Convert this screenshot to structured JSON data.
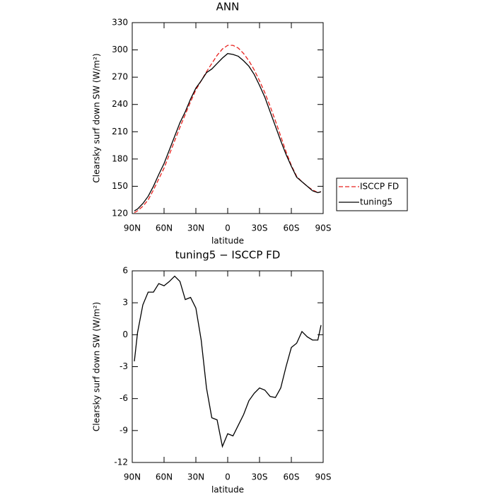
{
  "chart_data": [
    {
      "type": "line",
      "title": "ANN",
      "xlabel": "latitude",
      "ylabel": "Clearsky surf down SW (W/m²)",
      "x": [
        88,
        85,
        80,
        75,
        70,
        65,
        60,
        55,
        50,
        45,
        40,
        35,
        30,
        25,
        20,
        15,
        10,
        5,
        0,
        -5,
        -10,
        -15,
        -20,
        -25,
        -30,
        -35,
        -40,
        -45,
        -50,
        -55,
        -60,
        -65,
        -70,
        -75,
        -80,
        -85,
        -88
      ],
      "series": [
        {
          "name": "ISCCP FD",
          "color": "#e8211d",
          "style": "dashed",
          "values": [
            121,
            123,
            128,
            135,
            146,
            158,
            170,
            185,
            200,
            215,
            229,
            243,
            256,
            266,
            276,
            285,
            294,
            301,
            305,
            305,
            302,
            296,
            288,
            278,
            266,
            253,
            238,
            222,
            205,
            188,
            173,
            161,
            155,
            150,
            146,
            143,
            144
          ]
        },
        {
          "name": "tuning5",
          "color": "#000000",
          "style": "solid",
          "values": [
            123,
            125,
            131,
            139,
            150,
            163,
            175,
            190,
            205,
            220,
            232,
            246,
            258,
            266,
            275,
            279,
            285,
            291,
            296,
            295,
            293,
            288,
            282,
            273,
            261,
            248,
            232,
            216,
            200,
            185,
            172,
            160,
            155,
            150,
            145,
            143,
            144
          ]
        }
      ],
      "xlim": [
        90,
        -90
      ],
      "xticks": [
        {
          "value": 90,
          "label": "90N"
        },
        {
          "value": 60,
          "label": "60N"
        },
        {
          "value": 30,
          "label": "30N"
        },
        0,
        {
          "value": -30,
          "label": "30S"
        },
        {
          "value": -60,
          "label": "60S"
        },
        {
          "value": -90,
          "label": "90S"
        }
      ],
      "ylim": [
        120,
        330
      ],
      "yticks": [
        120,
        150,
        180,
        210,
        240,
        270,
        300,
        330
      ],
      "legend": "right"
    },
    {
      "type": "line",
      "title": "tuning5 − ISCCP FD",
      "xlabel": "latitude",
      "ylabel": "Clearsky surf down SW (W/m²)",
      "x": [
        88,
        85,
        80,
        75,
        70,
        65,
        60,
        55,
        50,
        45,
        40,
        35,
        30,
        25,
        20,
        15,
        10,
        5,
        0,
        -5,
        -10,
        -15,
        -20,
        -25,
        -30,
        -35,
        -40,
        -45,
        -50,
        -55,
        -60,
        -65,
        -70,
        -75,
        -80,
        -85,
        -88
      ],
      "color": "#000000",
      "values": [
        -2.5,
        0.2,
        2.8,
        4.0,
        4.0,
        4.8,
        4.6,
        5.0,
        5.5,
        5.0,
        3.3,
        3.5,
        2.5,
        -0.5,
        -5.0,
        -7.8,
        -8.0,
        -10.5,
        -9.3,
        -9.5,
        -8.5,
        -7.5,
        -6.2,
        -5.5,
        -5.0,
        -5.2,
        -5.8,
        -5.9,
        -5.0,
        -3.0,
        -1.2,
        -0.8,
        0.3,
        -0.2,
        -0.5,
        -0.5,
        0.9
      ],
      "xlim": [
        90,
        -90
      ],
      "xticks": [
        {
          "value": 90,
          "label": "90N"
        },
        {
          "value": 60,
          "label": "60N"
        },
        {
          "value": 30,
          "label": "30N"
        },
        0,
        {
          "value": -30,
          "label": "30S"
        },
        {
          "value": -60,
          "label": "60S"
        },
        {
          "value": -90,
          "label": "90S"
        }
      ],
      "ylim": [
        -12,
        6
      ],
      "yticks": [
        -12,
        -9,
        -6,
        -3,
        0,
        3,
        6
      ]
    }
  ]
}
